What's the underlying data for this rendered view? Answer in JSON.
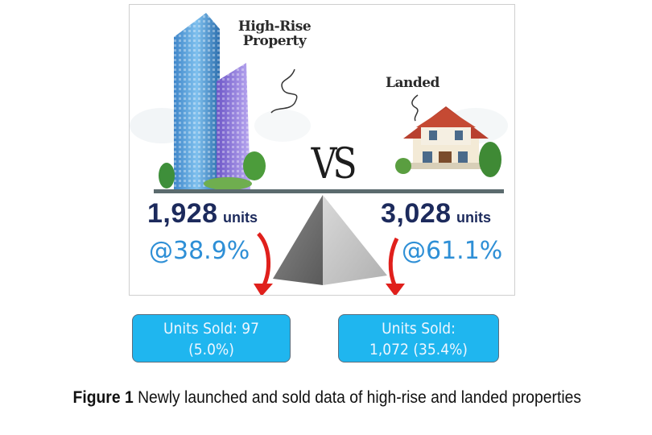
{
  "labels": {
    "high_rise_line1": "High-Rise",
    "high_rise_line2": "Property",
    "landed": "Landed",
    "vs": "VS"
  },
  "high_rise": {
    "units_value": "1,928",
    "units_word": "units",
    "percent": "@38.9%",
    "sold_line1": "Units Sold: 97",
    "sold_line2": "(5.0%)"
  },
  "landed": {
    "units_value": "3,028",
    "units_word": "units",
    "percent": "@61.1%",
    "sold_line1": "Units Sold:",
    "sold_line2": "1,072 (35.4%)"
  },
  "caption": {
    "figure_label": "Figure 1",
    "text": "Newly launched and sold data of high-rise and landed properties"
  },
  "colors": {
    "units_text": "#1c2a5c",
    "percent_text": "#2e8fd6",
    "sold_box_fill": "#1fb6ef",
    "arrow_red": "#e0201c"
  }
}
